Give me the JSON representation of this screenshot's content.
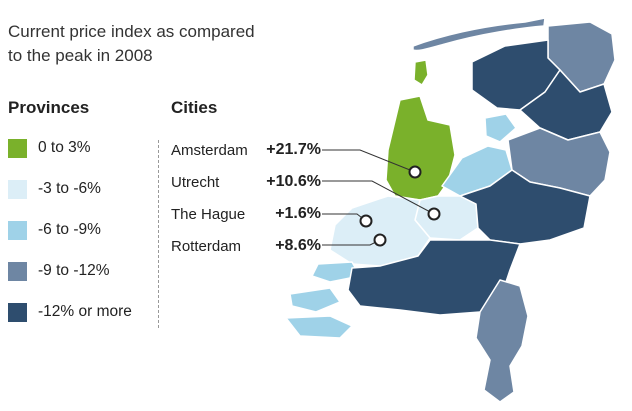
{
  "title": {
    "line1": "Current price index as compared",
    "line2": "to the peak in 2008"
  },
  "provinces": {
    "heading": "Provinces",
    "legend": [
      {
        "label": "0 to 3%",
        "color": "#7ab12b"
      },
      {
        "label": "-3 to -6%",
        "color": "#dceef7"
      },
      {
        "label": "-6 to -9%",
        "color": "#9fd2e8"
      },
      {
        "label": "-9 to -12%",
        "color": "#6e86a3"
      },
      {
        "label": "-12% or more",
        "color": "#2e4d6e"
      }
    ]
  },
  "cities": {
    "heading": "Cities",
    "items": [
      {
        "name": "Amsterdam",
        "change": "+21.7%"
      },
      {
        "name": "Utrecht",
        "change": "+10.6%"
      },
      {
        "name": "The Hague",
        "change": "+1.6%"
      },
      {
        "name": "Rotterdam",
        "change": "+8.6%"
      }
    ]
  }
}
